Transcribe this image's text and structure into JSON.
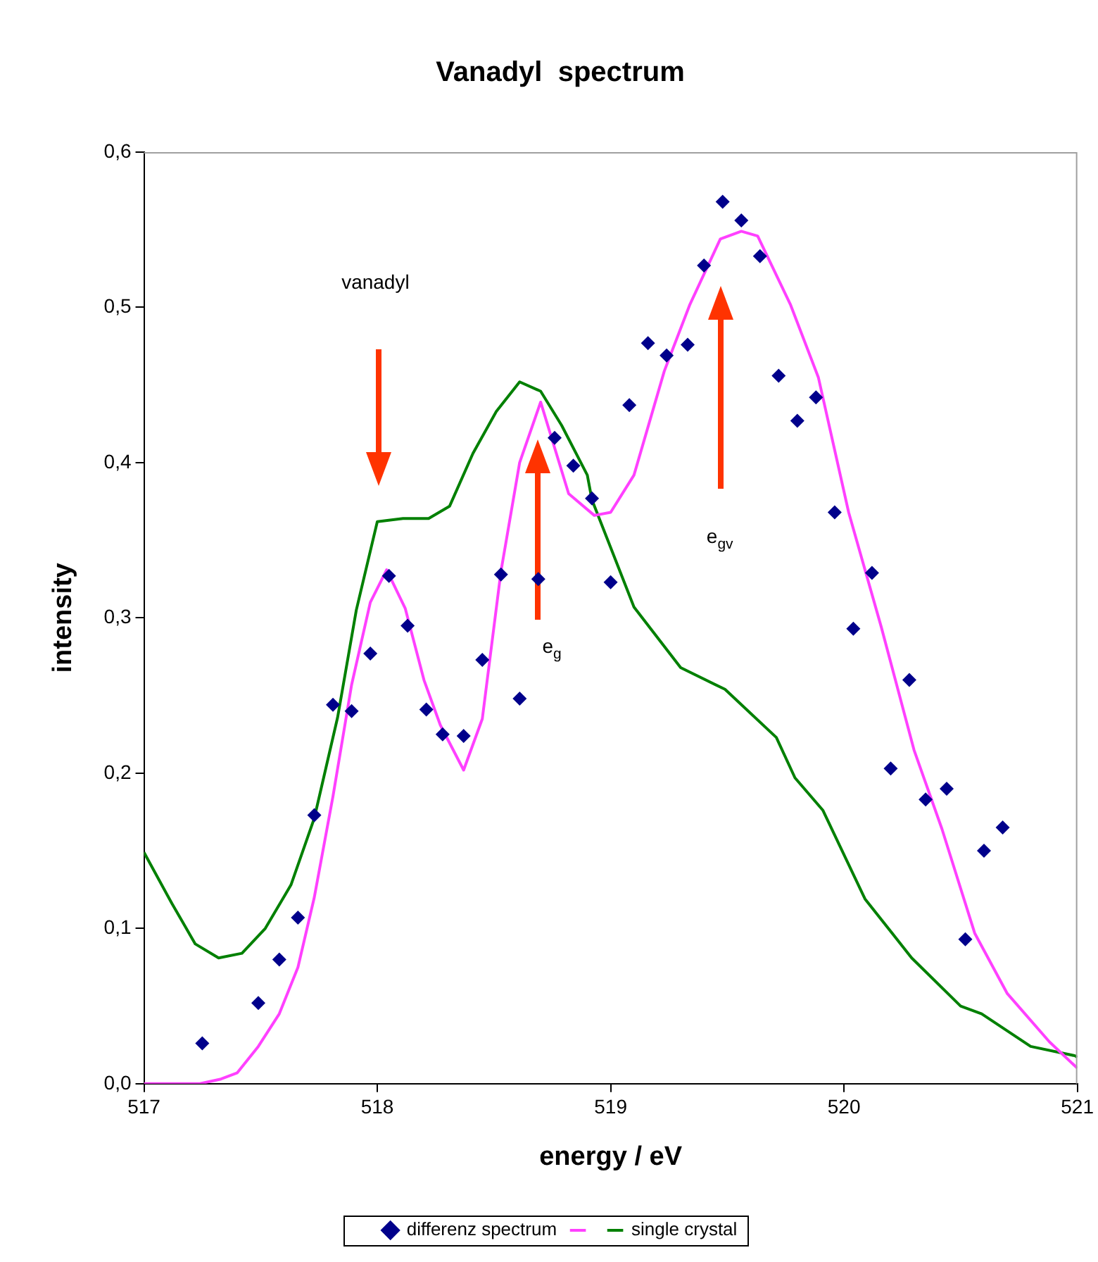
{
  "chart_data": {
    "type": "scatter",
    "title": "Vanadyl  spectrum",
    "xlabel": "energy / eV",
    "ylabel": "intensity",
    "xlim": [
      517,
      521
    ],
    "xticks": [
      517,
      518,
      519,
      520,
      521
    ],
    "ylim": [
      0,
      0.6
    ],
    "yticks": [
      {
        "value": 0,
        "label": "0,0"
      },
      {
        "value": 0.1,
        "label": "0,1"
      },
      {
        "value": 0.2,
        "label": "0,2"
      },
      {
        "value": 0.3,
        "label": "0,3"
      },
      {
        "value": 0.4,
        "label": "0,4"
      },
      {
        "value": 0.5,
        "label": "0,5"
      },
      {
        "value": 0.6,
        "label": "0,6"
      }
    ],
    "grid": false,
    "legend": "bottom",
    "series": [
      {
        "name": "differenz spectrum",
        "type": "scatter",
        "marker": "diamond",
        "color": "#00008b",
        "x": [
          517.25,
          517.49,
          517.58,
          517.66,
          517.73,
          517.81,
          517.89,
          517.97,
          518.05,
          518.13,
          518.21,
          518.28,
          518.37,
          518.45,
          518.53,
          518.61,
          518.69,
          518.76,
          518.84,
          518.92,
          519.0,
          519.08,
          519.16,
          519.24,
          519.33,
          519.4,
          519.48,
          519.56,
          519.64,
          519.72,
          519.8,
          519.88,
          519.96,
          520.04,
          520.12,
          520.2,
          520.28,
          520.35,
          520.44,
          520.52,
          520.6,
          520.68
        ],
        "values": [
          0.026,
          0.052,
          0.08,
          0.107,
          0.173,
          0.244,
          0.24,
          0.277,
          0.327,
          0.295,
          0.241,
          0.225,
          0.224,
          0.273,
          0.328,
          0.248,
          0.325,
          0.416,
          0.398,
          0.377,
          0.323,
          0.437,
          0.477,
          0.469,
          0.476,
          0.527,
          0.568,
          0.556,
          0.533,
          0.456,
          0.427,
          0.442,
          0.368,
          0.293,
          0.329,
          0.203,
          0.26,
          0.183,
          0.19,
          0.093,
          0.15,
          0.165
        ]
      },
      {
        "type": "line",
        "marker": "none",
        "color": "#ff40ff",
        "x": [
          517.0,
          517.24,
          517.33,
          517.4,
          517.49,
          517.58,
          517.66,
          517.73,
          517.81,
          517.89,
          517.97,
          518.04,
          518.12,
          518.2,
          518.27,
          518.37,
          518.45,
          518.53,
          518.61,
          518.7,
          518.82,
          518.93,
          519.0,
          519.1,
          519.23,
          519.34,
          519.47,
          519.56,
          519.63,
          519.77,
          519.89,
          520.02,
          520.16,
          520.3,
          520.42,
          520.56,
          520.7,
          520.88,
          521.0
        ],
        "values": [
          0,
          0,
          0.003,
          0.007,
          0.024,
          0.045,
          0.075,
          0.12,
          0.185,
          0.257,
          0.31,
          0.331,
          0.306,
          0.26,
          0.231,
          0.202,
          0.235,
          0.33,
          0.4,
          0.439,
          0.38,
          0.366,
          0.368,
          0.392,
          0.459,
          0.502,
          0.544,
          0.549,
          0.546,
          0.502,
          0.455,
          0.368,
          0.294,
          0.215,
          0.164,
          0.097,
          0.058,
          0.027,
          0.01
        ]
      },
      {
        "name": "single crystal",
        "type": "line",
        "marker": "none",
        "color": "#008000",
        "x": [
          517.0,
          517.12,
          517.22,
          517.32,
          517.42,
          517.52,
          517.63,
          517.73,
          517.83,
          517.91,
          518.0,
          518.11,
          518.22,
          518.31,
          518.41,
          518.51,
          518.61,
          518.7,
          518.79,
          518.9,
          518.92,
          519.1,
          519.3,
          519.49,
          519.71,
          519.79,
          519.91,
          520.09,
          520.29,
          520.5,
          520.59,
          520.8,
          520.99,
          521.0
        ],
        "values": [
          0.149,
          0.116,
          0.09,
          0.081,
          0.084,
          0.1,
          0.128,
          0.171,
          0.236,
          0.305,
          0.362,
          0.364,
          0.364,
          0.372,
          0.406,
          0.433,
          0.452,
          0.446,
          0.424,
          0.392,
          0.376,
          0.307,
          0.268,
          0.254,
          0.223,
          0.197,
          0.176,
          0.119,
          0.081,
          0.05,
          0.045,
          0.024,
          0.018,
          0.017
        ]
      }
    ],
    "annotations": [
      "vanadyl",
      "e$_{g}$",
      "e$_{gv}$"
    ]
  }
}
